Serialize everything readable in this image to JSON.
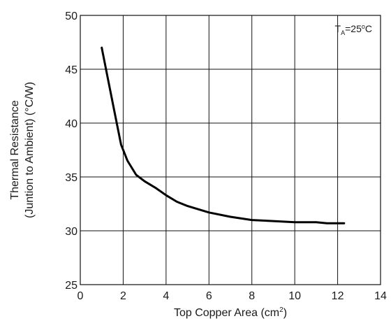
{
  "chart_data": {
    "type": "line",
    "title": "",
    "xlabel": "Top Copper Area (cm",
    "xlabel_sup": "2",
    "xlabel_end": ")",
    "ylabel_line1": "Thermal Resistance",
    "ylabel_line2": "(Juntion to Ambient) (°C/W)",
    "xlim": [
      0,
      14
    ],
    "ylim": [
      25,
      50
    ],
    "xticks": [
      "0",
      "2",
      "4",
      "6",
      "8",
      "10",
      "12",
      "14"
    ],
    "yticks": [
      "25",
      "30",
      "35",
      "40",
      "45",
      "50"
    ],
    "grid": true,
    "annotation": {
      "prefix": "T",
      "sub": "A",
      "text": "=25",
      "sup": "o",
      "suffix": "C"
    },
    "series": [
      {
        "x": [
          1.0,
          1.3,
          1.6,
          1.9,
          2.2,
          2.6,
          3.0,
          3.5,
          4.0,
          4.5,
          5.0,
          5.5,
          6.0,
          7.0,
          8.0,
          9.0,
          10.0,
          11.0,
          11.5,
          12.3
        ],
        "y": [
          47.0,
          44.0,
          41.0,
          38.0,
          36.5,
          35.2,
          34.6,
          34.0,
          33.3,
          32.7,
          32.3,
          32.0,
          31.7,
          31.3,
          31.0,
          30.9,
          30.8,
          30.8,
          30.7,
          30.7
        ]
      }
    ]
  }
}
